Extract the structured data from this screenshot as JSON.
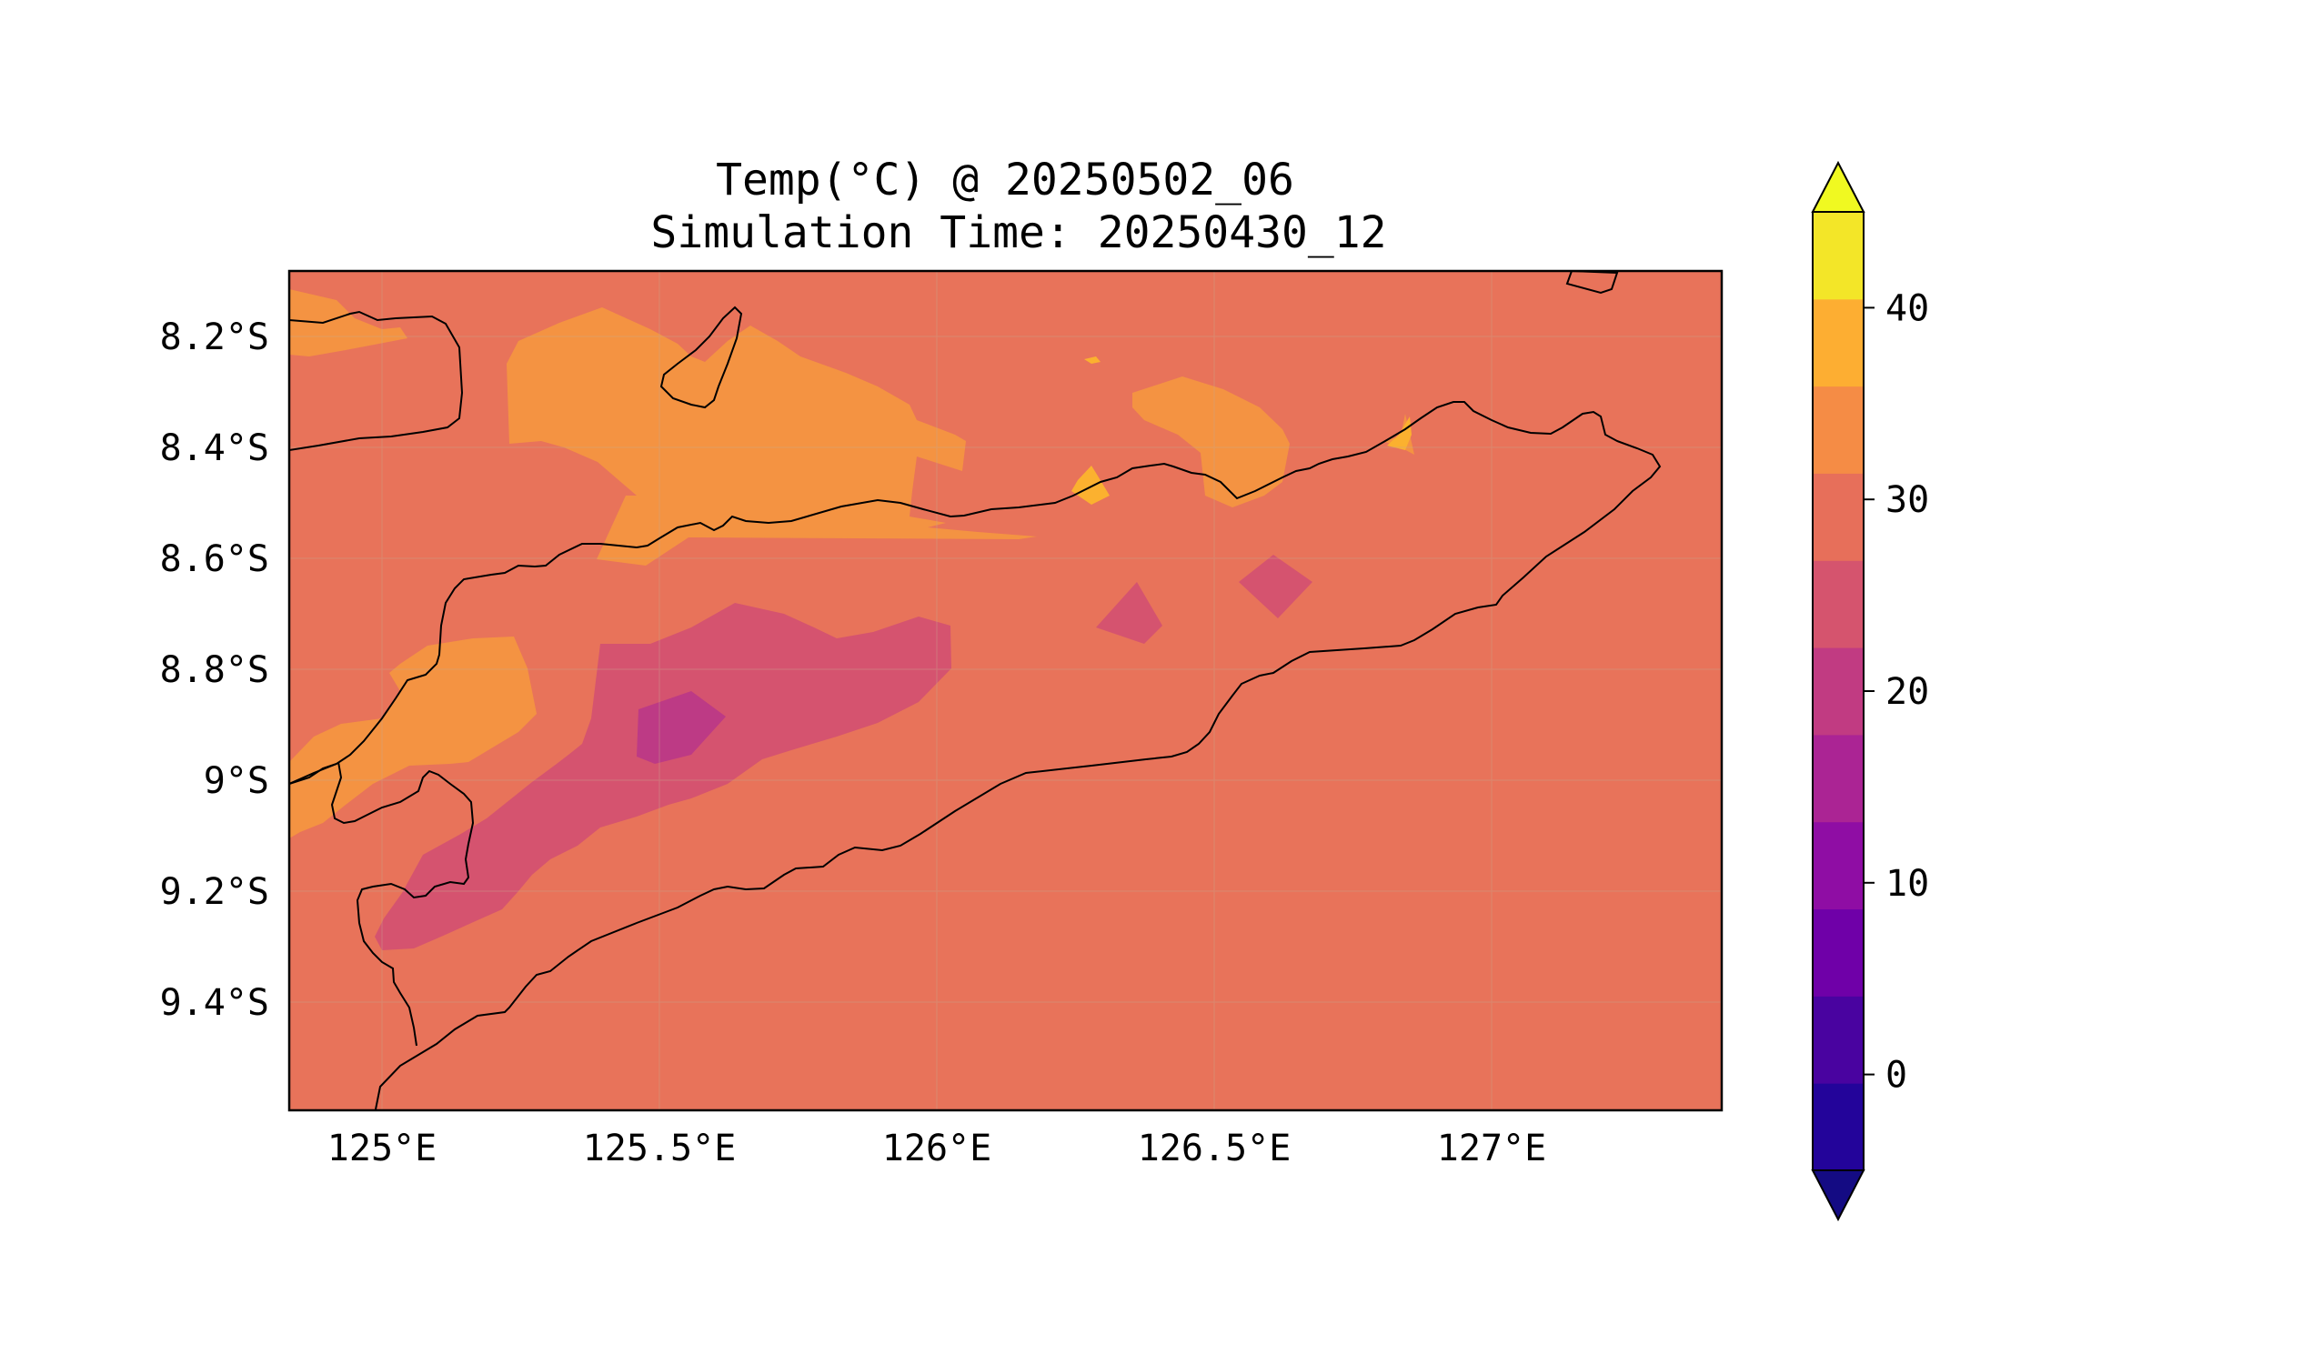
{
  "title_line1": "Temp(°C) @ 20250502_06",
  "title_line2": "Simulation Time: 20250430_12",
  "map": {
    "lon_ticks": [
      "125°E",
      "125.5°E",
      "126°E",
      "126.5°E",
      "127°E"
    ],
    "lat_ticks": [
      "8.2°S",
      "8.4°S",
      "8.6°S",
      "8.8°S",
      "9°S",
      "9.2°S",
      "9.4°S"
    ],
    "lon_range": [
      124.82,
      127.42
    ],
    "lat_range": [
      -9.6,
      -8.08
    ],
    "gridlines": true,
    "coastlines": true,
    "colormap": "plasma",
    "fill_colors": {
      "25-30": "#e8735a",
      "30-35": "#f49342",
      "35-40": "#fbb12f",
      "20-25": "#d5536f",
      "15-20": "#bd3a85"
    }
  },
  "colorbar": {
    "tick_labels": [
      "0",
      "10",
      "20",
      "30",
      "40"
    ],
    "levels": [
      -5,
      0,
      5,
      10,
      15,
      20,
      25,
      30,
      35,
      40,
      45
    ],
    "colors": [
      "#23049a",
      "#4903a0",
      "#6f00a8",
      "#8f0da4",
      "#ab2494",
      "#c13b82",
      "#d5546e",
      "#e76f5a",
      "#f58c45",
      "#fdae32",
      "#f3e628"
    ],
    "under_color": "#140b83",
    "over_color": "#f0f921",
    "extend": "both"
  }
}
